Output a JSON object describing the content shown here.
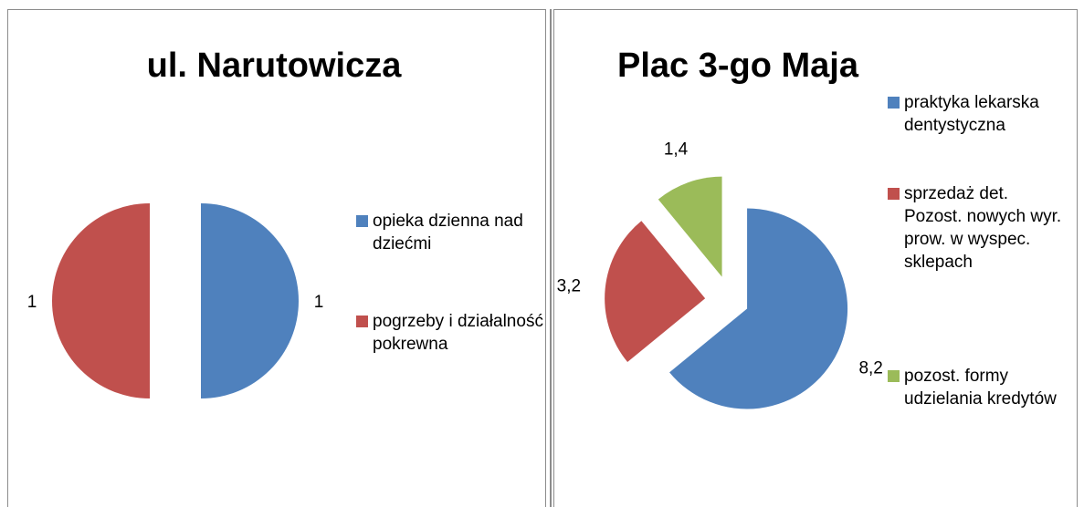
{
  "chart_data": [
    {
      "type": "pie",
      "title": "ul. Narutowicza",
      "categories": [
        "opieka dzienna nad dziećmi",
        "pogrzeby i działalność pokrewna"
      ],
      "values": [
        1,
        1
      ],
      "colors": [
        "#4f81bd",
        "#c0504d"
      ]
    },
    {
      "type": "pie",
      "title": "Plac 3-go Maja",
      "categories": [
        "praktyka lekarska dentystyczna",
        "sprzedaż det. Pozost. nowych wyr. prow. w wyspec. sklepach",
        "pozost. formy udzielania kredytów"
      ],
      "values": [
        8.2,
        3.2,
        1.4
      ],
      "value_labels": [
        "8,2",
        "3,2",
        "1,4"
      ],
      "colors": [
        "#4f81bd",
        "#c0504d",
        "#9bbb59"
      ]
    }
  ]
}
